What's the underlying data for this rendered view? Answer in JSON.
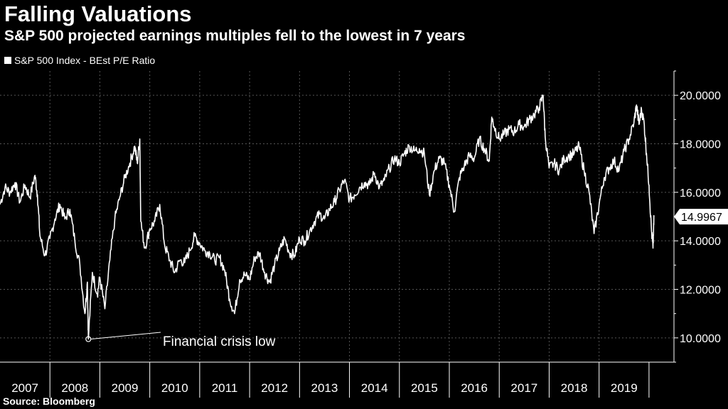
{
  "header": {
    "title": "Falling Valuations",
    "subtitle": "S&P 500 projected earnings multiples fell to the lowest in 7 years"
  },
  "legend": {
    "label": "S&P 500 Index - BEst P/E Ratio"
  },
  "footer": {
    "source": "Source: Bloomberg"
  },
  "chart_data": {
    "type": "line",
    "title": "Falling Valuations",
    "subtitle": "S&P 500 projected earnings multiples fell to the lowest in 7 years",
    "xlabel": "",
    "ylabel": "",
    "x_ticks": [
      "2007",
      "2008",
      "2009",
      "2010",
      "2011",
      "2012",
      "2013",
      "2014",
      "2015",
      "2016",
      "2017",
      "2018",
      "2019"
    ],
    "y_ticks": [
      "10.0000",
      "12.0000",
      "14.0000",
      "16.0000",
      "18.0000",
      "20.0000"
    ],
    "xlim": [
      2007.0,
      2020.5
    ],
    "ylim": [
      9.0,
      21.0
    ],
    "grid": true,
    "legend_position": "top-left",
    "line_color": "#ffffff",
    "last_value": {
      "label": "14.9967",
      "value": 14.9967
    },
    "annotations": [
      {
        "text": "Financial crisis low",
        "x": 2008.77,
        "y": 9.95
      }
    ],
    "series": [
      {
        "name": "S&P 500 Index - BEst P/E Ratio",
        "points": [
          [
            2007.0,
            15.5
          ],
          [
            2007.1,
            16.2
          ],
          [
            2007.2,
            16.0
          ],
          [
            2007.3,
            16.4
          ],
          [
            2007.4,
            15.6
          ],
          [
            2007.5,
            16.3
          ],
          [
            2007.6,
            15.8
          ],
          [
            2007.7,
            16.7
          ],
          [
            2007.75,
            15.9
          ],
          [
            2007.8,
            14.2
          ],
          [
            2007.9,
            13.4
          ],
          [
            2008.0,
            14.1
          ],
          [
            2008.1,
            14.9
          ],
          [
            2008.2,
            15.5
          ],
          [
            2008.3,
            14.9
          ],
          [
            2008.4,
            15.3
          ],
          [
            2008.5,
            14.0
          ],
          [
            2008.6,
            13.0
          ],
          [
            2008.7,
            11.0
          ],
          [
            2008.75,
            12.3
          ],
          [
            2008.77,
            9.95
          ],
          [
            2008.85,
            12.7
          ],
          [
            2008.95,
            11.8
          ],
          [
            2009.0,
            12.5
          ],
          [
            2009.1,
            11.2
          ],
          [
            2009.2,
            13.2
          ],
          [
            2009.3,
            14.9
          ],
          [
            2009.4,
            15.8
          ],
          [
            2009.5,
            16.6
          ],
          [
            2009.6,
            17.2
          ],
          [
            2009.7,
            17.9
          ],
          [
            2009.75,
            17.2
          ],
          [
            2009.8,
            18.2
          ],
          [
            2009.82,
            14.8
          ],
          [
            2009.9,
            13.7
          ],
          [
            2010.0,
            14.5
          ],
          [
            2010.1,
            14.8
          ],
          [
            2010.2,
            15.5
          ],
          [
            2010.3,
            13.8
          ],
          [
            2010.4,
            13.2
          ],
          [
            2010.5,
            12.7
          ],
          [
            2010.6,
            13.2
          ],
          [
            2010.7,
            13.1
          ],
          [
            2010.8,
            13.6
          ],
          [
            2010.9,
            14.2
          ],
          [
            2011.0,
            13.9
          ],
          [
            2011.1,
            13.6
          ],
          [
            2011.2,
            13.5
          ],
          [
            2011.3,
            13.2
          ],
          [
            2011.4,
            13.3
          ],
          [
            2011.5,
            12.8
          ],
          [
            2011.6,
            11.6
          ],
          [
            2011.7,
            11.0
          ],
          [
            2011.8,
            12.4
          ],
          [
            2011.9,
            12.6
          ],
          [
            2012.0,
            12.4
          ],
          [
            2012.1,
            13.3
          ],
          [
            2012.2,
            13.5
          ],
          [
            2012.3,
            12.7
          ],
          [
            2012.4,
            12.3
          ],
          [
            2012.5,
            13.0
          ],
          [
            2012.6,
            13.6
          ],
          [
            2012.7,
            14.1
          ],
          [
            2012.8,
            13.5
          ],
          [
            2012.9,
            13.4
          ],
          [
            2013.0,
            14.1
          ],
          [
            2013.1,
            14.0
          ],
          [
            2013.2,
            14.4
          ],
          [
            2013.3,
            14.8
          ],
          [
            2013.4,
            15.1
          ],
          [
            2013.5,
            14.9
          ],
          [
            2013.6,
            15.3
          ],
          [
            2013.7,
            15.6
          ],
          [
            2013.8,
            16.1
          ],
          [
            2013.9,
            16.5
          ],
          [
            2014.0,
            15.7
          ],
          [
            2014.1,
            15.9
          ],
          [
            2014.2,
            16.2
          ],
          [
            2014.3,
            16.4
          ],
          [
            2014.4,
            16.3
          ],
          [
            2014.5,
            16.8
          ],
          [
            2014.6,
            16.2
          ],
          [
            2014.7,
            16.5
          ],
          [
            2014.8,
            17.0
          ],
          [
            2014.9,
            17.4
          ],
          [
            2015.0,
            17.2
          ],
          [
            2015.1,
            17.6
          ],
          [
            2015.2,
            17.9
          ],
          [
            2015.3,
            17.7
          ],
          [
            2015.4,
            17.8
          ],
          [
            2015.5,
            17.6
          ],
          [
            2015.6,
            15.9
          ],
          [
            2015.7,
            16.9
          ],
          [
            2015.8,
            17.4
          ],
          [
            2015.9,
            17.2
          ],
          [
            2016.0,
            16.3
          ],
          [
            2016.1,
            15.2
          ],
          [
            2016.2,
            16.6
          ],
          [
            2016.3,
            17.1
          ],
          [
            2016.4,
            17.5
          ],
          [
            2016.5,
            17.4
          ],
          [
            2016.6,
            18.2
          ],
          [
            2016.7,
            17.8
          ],
          [
            2016.8,
            17.3
          ],
          [
            2016.85,
            19.1
          ],
          [
            2016.9,
            18.7
          ],
          [
            2017.0,
            18.2
          ],
          [
            2017.1,
            18.4
          ],
          [
            2017.2,
            18.6
          ],
          [
            2017.3,
            18.5
          ],
          [
            2017.4,
            18.8
          ],
          [
            2017.5,
            18.7
          ],
          [
            2017.6,
            19.0
          ],
          [
            2017.7,
            19.2
          ],
          [
            2017.8,
            19.5
          ],
          [
            2017.88,
            20.0
          ],
          [
            2017.92,
            18.3
          ],
          [
            2018.0,
            17.0
          ],
          [
            2018.1,
            17.2
          ],
          [
            2018.2,
            16.9
          ],
          [
            2018.3,
            17.4
          ],
          [
            2018.4,
            17.5
          ],
          [
            2018.5,
            17.6
          ],
          [
            2018.6,
            17.9
          ],
          [
            2018.7,
            16.9
          ],
          [
            2018.8,
            16.0
          ],
          [
            2018.9,
            14.3
          ],
          [
            2019.0,
            15.5
          ],
          [
            2019.1,
            16.6
          ],
          [
            2019.2,
            17.0
          ],
          [
            2019.3,
            17.3
          ],
          [
            2019.4,
            16.9
          ],
          [
            2019.5,
            17.7
          ],
          [
            2019.6,
            18.2
          ],
          [
            2019.7,
            18.9
          ],
          [
            2019.75,
            19.6
          ],
          [
            2019.8,
            18.8
          ],
          [
            2019.85,
            19.4
          ],
          [
            2019.9,
            18.9
          ],
          [
            2019.95,
            17.6
          ],
          [
            2020.0,
            16.3
          ],
          [
            2020.05,
            14.4
          ],
          [
            2020.08,
            13.7
          ],
          [
            2020.1,
            15.0
          ]
        ]
      }
    ]
  }
}
